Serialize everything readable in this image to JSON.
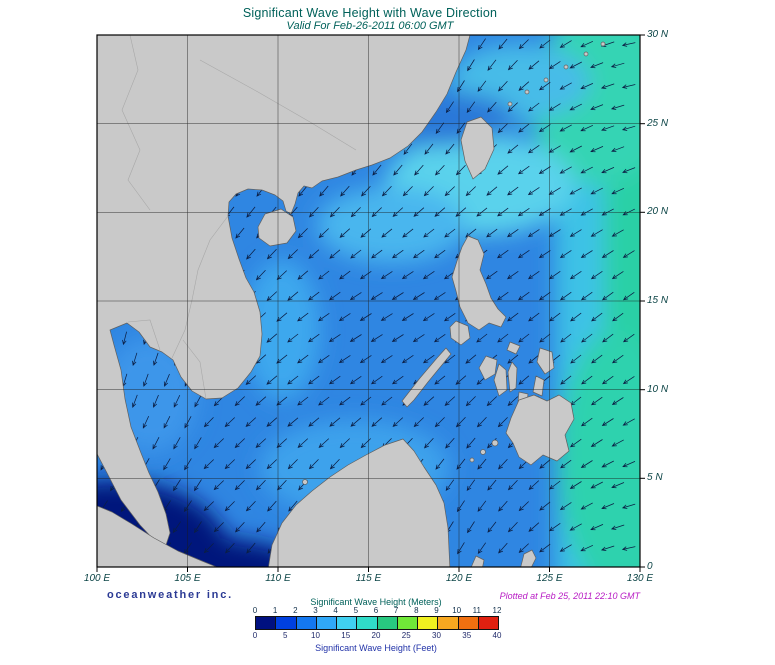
{
  "title": "Significant Wave Height with Wave Direction",
  "valid_line": "Valid For Feb-26-2011 06:00 GMT",
  "credit": "oceanweather inc.",
  "plotted": "Plotted at Feb 25, 2011 22:10 GMT",
  "axes": {
    "x_ticks": [
      "100 E",
      "105 E",
      "110 E",
      "115 E",
      "120 E",
      "125 E",
      "130 E"
    ],
    "y_ticks": [
      "30 N",
      "25 N",
      "20 N",
      "15 N",
      "10 N",
      "5 N",
      "0"
    ]
  },
  "legend": {
    "meters_label": "Significant Wave Height (Meters)",
    "feet_label": "Significant Wave Height (Feet)",
    "meters_ticks": [
      "0",
      "1",
      "2",
      "3",
      "4",
      "5",
      "6",
      "7",
      "8",
      "9",
      "10",
      "11",
      "12"
    ],
    "feet_ticks": [
      "0",
      "5",
      "10",
      "15",
      "20",
      "25",
      "30",
      "35",
      "40"
    ],
    "bin_colors": [
      "#001080",
      "#0040e0",
      "#1478f0",
      "#30a8f8",
      "#40d0f0",
      "#30dcc8",
      "#28c880",
      "#70e838",
      "#f0f020",
      "#f8a820",
      "#f07010",
      "#e02010"
    ]
  },
  "map_colors": {
    "ocean_base": "#2f86e2",
    "pacific_teal": "#2ad0a6",
    "luzon_strait_cyan": "#5ad2ec",
    "low_wave_navy": "#06187c",
    "land_gray": "#c9c9c9",
    "arrow": "#0b1e44",
    "grid": "#1a1a1a"
  }
}
